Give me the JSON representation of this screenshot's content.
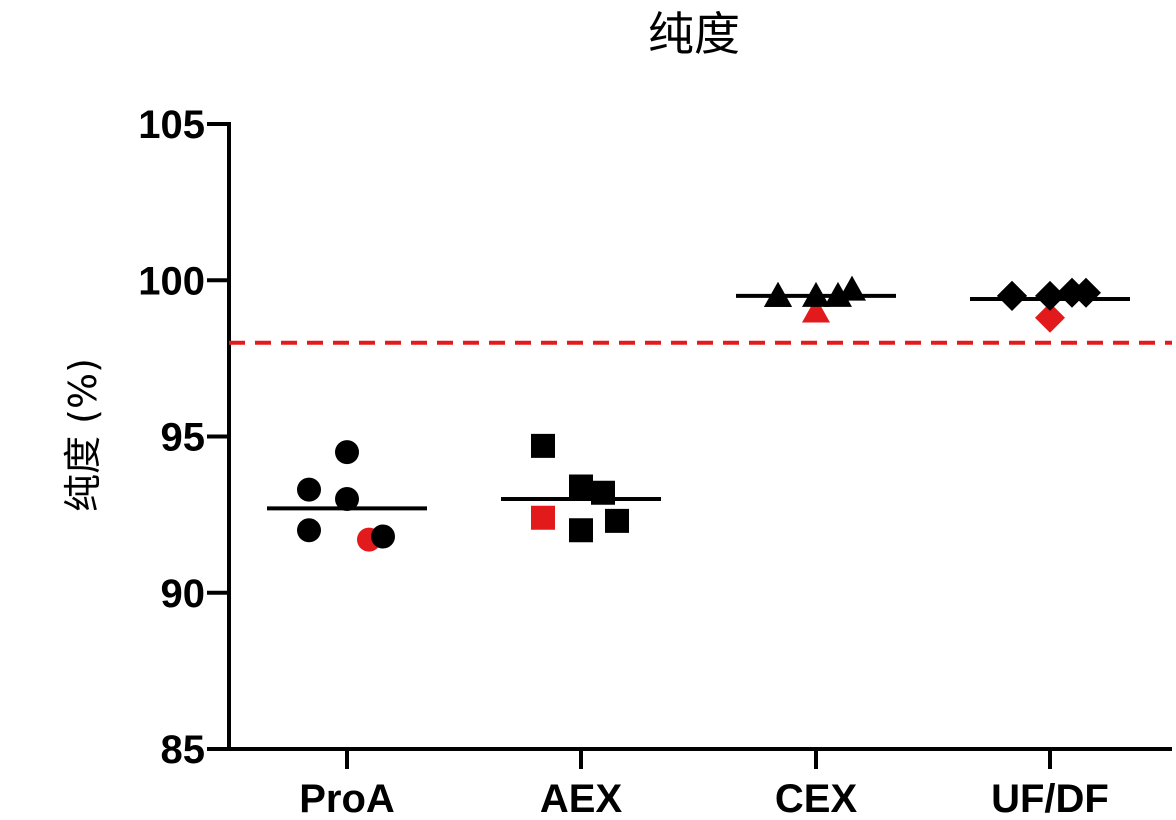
{
  "chart_data": {
    "type": "scatter",
    "title": "纯度",
    "xlabel": "",
    "ylabel": "纯度 (%)",
    "ylim": [
      85,
      105
    ],
    "yticks": [
      85,
      90,
      95,
      100,
      105
    ],
    "categories": [
      "ProA",
      "AEX",
      "CEX",
      "UF/DF"
    ],
    "reference_line": {
      "y": 98,
      "style": "dashed",
      "color": "#e31a1c"
    },
    "grid": false,
    "legend": "none",
    "colors": {
      "default": "#000000",
      "highlight": "#e31a1c"
    },
    "series": [
      {
        "category": "ProA",
        "marker": "circle",
        "mean": 92.7,
        "points": [
          {
            "y": 93.3,
            "highlight": false
          },
          {
            "y": 92.0,
            "highlight": false
          },
          {
            "y": 93.0,
            "highlight": false
          },
          {
            "y": 94.5,
            "highlight": false
          },
          {
            "y": 91.7,
            "highlight": true
          },
          {
            "y": 91.8,
            "highlight": false
          }
        ]
      },
      {
        "category": "AEX",
        "marker": "square",
        "mean": 93.0,
        "points": [
          {
            "y": 92.4,
            "highlight": true
          },
          {
            "y": 94.7,
            "highlight": false
          },
          {
            "y": 93.4,
            "highlight": false
          },
          {
            "y": 92.0,
            "highlight": false
          },
          {
            "y": 93.2,
            "highlight": false
          },
          {
            "y": 92.3,
            "highlight": false
          }
        ]
      },
      {
        "category": "CEX",
        "marker": "triangle",
        "mean": 99.5,
        "points": [
          {
            "y": 99.5,
            "highlight": false
          },
          {
            "y": 99.5,
            "highlight": false
          },
          {
            "y": 99.0,
            "highlight": true
          },
          {
            "y": 99.5,
            "highlight": false
          },
          {
            "y": 99.5,
            "highlight": false
          },
          {
            "y": 99.7,
            "highlight": false
          }
        ]
      },
      {
        "category": "UF/DF",
        "marker": "diamond",
        "mean": 99.4,
        "points": [
          {
            "y": 99.5,
            "highlight": false
          },
          {
            "y": 99.5,
            "highlight": false
          },
          {
            "y": 98.8,
            "highlight": true
          },
          {
            "y": 99.5,
            "highlight": false
          },
          {
            "y": 99.6,
            "highlight": false
          },
          {
            "y": 99.6,
            "highlight": false
          }
        ]
      }
    ]
  }
}
